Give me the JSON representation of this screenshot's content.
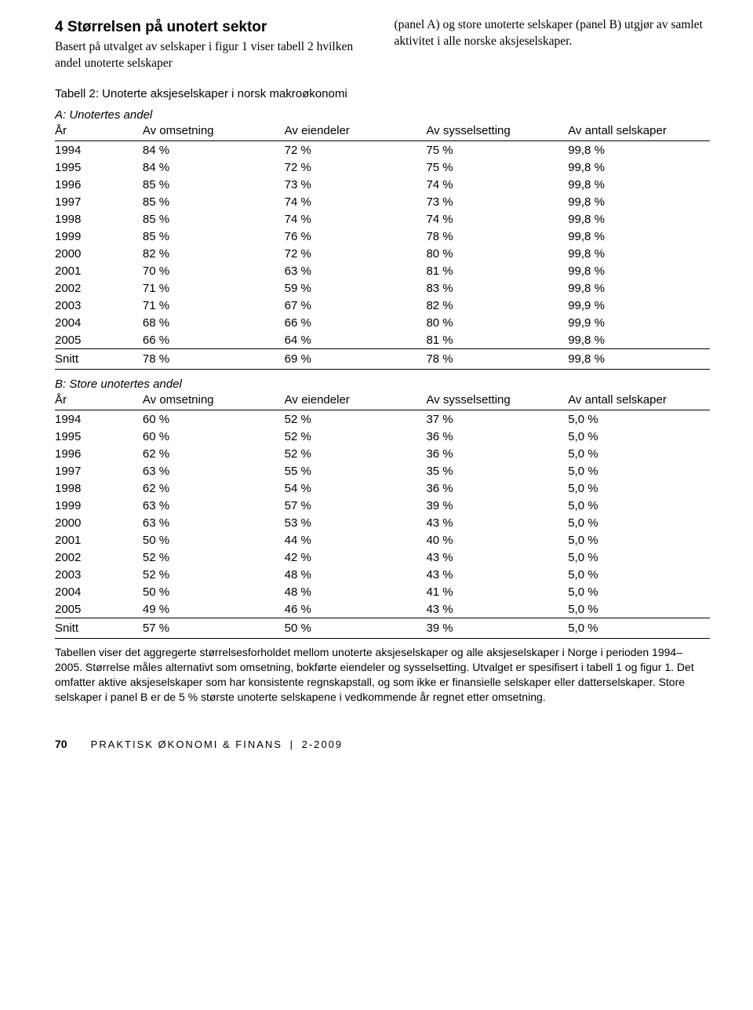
{
  "heading": "4  Størrelsen på unotert sektor",
  "intro_left": "Basert på utvalget av selskaper i figur 1 viser tabell 2 hvilken andel unoterte selskaper",
  "intro_right": "(panel A) og store unoterte selskaper (panel B) utgjør av samlet aktivitet i alle norske aksjeselskaper.",
  "table_caption": "Tabell 2: Unoterte aksjeselskaper i norsk makroøkonomi",
  "panel_a_title": "A: Unotertes andel",
  "panel_b_title": "B: Store unotertes andel",
  "columns": [
    "År",
    "Av omsetning",
    "Av eiendeler",
    "Av sysselsetting",
    "Av antall selskaper"
  ],
  "panel_a": {
    "rows": [
      [
        "1994",
        "84 %",
        "72 %",
        "75 %",
        "99,8 %"
      ],
      [
        "1995",
        "84 %",
        "72 %",
        "75 %",
        "99,8 %"
      ],
      [
        "1996",
        "85 %",
        "73 %",
        "74 %",
        "99,8 %"
      ],
      [
        "1997",
        "85 %",
        "74 %",
        "73 %",
        "99,8 %"
      ],
      [
        "1998",
        "85 %",
        "74 %",
        "74 %",
        "99,8 %"
      ],
      [
        "1999",
        "85 %",
        "76 %",
        "78 %",
        "99,8 %"
      ],
      [
        "2000",
        "82 %",
        "72 %",
        "80 %",
        "99,8 %"
      ],
      [
        "2001",
        "70 %",
        "63 %",
        "81 %",
        "99,8 %"
      ],
      [
        "2002",
        "71 %",
        "59 %",
        "83 %",
        "99,8 %"
      ],
      [
        "2003",
        "71 %",
        "67 %",
        "82 %",
        "99,9 %"
      ],
      [
        "2004",
        "68 %",
        "66 %",
        "80 %",
        "99,9 %"
      ],
      [
        "2005",
        "66 %",
        "64 %",
        "81 %",
        "99,8 %"
      ]
    ],
    "snitt": [
      "Snitt",
      "78 %",
      "69 %",
      "78 %",
      "99,8 %"
    ]
  },
  "panel_b": {
    "rows": [
      [
        "1994",
        "60 %",
        "52 %",
        "37 %",
        "5,0 %"
      ],
      [
        "1995",
        "60 %",
        "52 %",
        "36 %",
        "5,0 %"
      ],
      [
        "1996",
        "62 %",
        "52 %",
        "36 %",
        "5,0 %"
      ],
      [
        "1997",
        "63 %",
        "55 %",
        "35 %",
        "5,0 %"
      ],
      [
        "1998",
        "62 %",
        "54 %",
        "36 %",
        "5,0 %"
      ],
      [
        "1999",
        "63 %",
        "57 %",
        "39 %",
        "5,0 %"
      ],
      [
        "2000",
        "63 %",
        "53 %",
        "43 %",
        "5,0 %"
      ],
      [
        "2001",
        "50 %",
        "44 %",
        "40 %",
        "5,0 %"
      ],
      [
        "2002",
        "52 %",
        "42 %",
        "43 %",
        "5,0 %"
      ],
      [
        "2003",
        "52 %",
        "48 %",
        "43 %",
        "5,0 %"
      ],
      [
        "2004",
        "50 %",
        "48 %",
        "41 %",
        "5,0 %"
      ],
      [
        "2005",
        "49 %",
        "46 %",
        "43 %",
        "5,0 %"
      ]
    ],
    "snitt": [
      "Snitt",
      "57 %",
      "50 %",
      "39 %",
      "5,0 %"
    ]
  },
  "footnote": "Tabellen viser det aggregerte størrelsesforholdet mellom unoterte aksjeselskaper og alle aksjeselskaper i Norge i perioden 1994–2005. Størrelse måles alternativt som omsetning, bokførte eiendeler og sysselsetting. Utvalget er spesifisert i tabell 1 og figur 1. Det omfatter aktive aksjeselskaper som har konsistente regnskapstall, og som ikke er finansielle selskaper eller datterselskaper. Store selskaper i panel B er de 5 % største unoterte selskapene i vedkommende år regnet etter omsetning.",
  "footer": {
    "page_number": "70",
    "journal": "PRAKTISK ØKONOMI & FINANS",
    "issue": "2-2009"
  }
}
